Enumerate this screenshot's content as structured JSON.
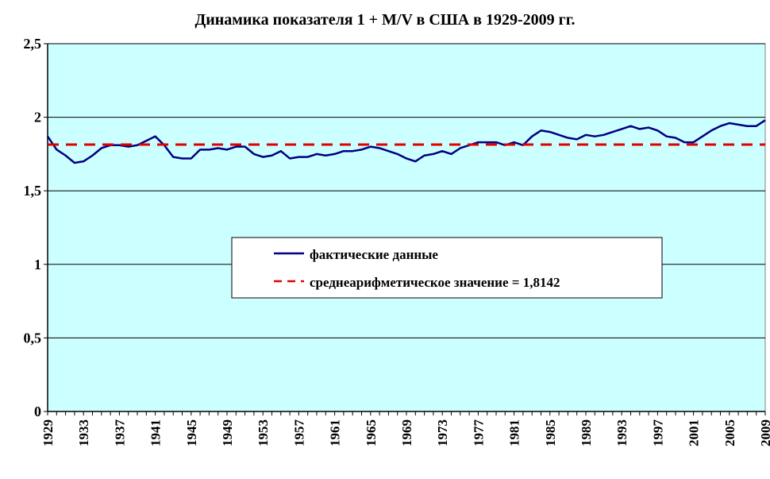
{
  "chart_data": {
    "type": "line",
    "title": "Динамика показателя 1 + M/V  в США в 1929-2009 гг.",
    "xlabel": "",
    "ylabel": "",
    "ylim": [
      0,
      2.5
    ],
    "xlim": [
      1929,
      2009
    ],
    "grid": true,
    "legend_position": "center",
    "y_ticks": [
      "0",
      "0,5",
      "1",
      "1,5",
      "2",
      "2,5"
    ],
    "x_ticks": [
      "1929",
      "1933",
      "1937",
      "1941",
      "1945",
      "1949",
      "1953",
      "1957",
      "1961",
      "1965",
      "1969",
      "1973",
      "1977",
      "1981",
      "1985",
      "1989",
      "1993",
      "1997",
      "2001",
      "2005",
      "2009"
    ],
    "colors": {
      "plot_background": "#ccffff",
      "actual_line": "#000080",
      "mean_line": "#e00000"
    },
    "series": [
      {
        "name": "фактические данные",
        "style": "solid",
        "x": [
          1929,
          1930,
          1931,
          1932,
          1933,
          1934,
          1935,
          1936,
          1937,
          1938,
          1939,
          1940,
          1941,
          1942,
          1943,
          1944,
          1945,
          1946,
          1947,
          1948,
          1949,
          1950,
          1951,
          1952,
          1953,
          1954,
          1955,
          1956,
          1957,
          1958,
          1959,
          1960,
          1961,
          1962,
          1963,
          1964,
          1965,
          1966,
          1967,
          1968,
          1969,
          1970,
          1971,
          1972,
          1973,
          1974,
          1975,
          1976,
          1977,
          1978,
          1979,
          1980,
          1981,
          1982,
          1983,
          1984,
          1985,
          1986,
          1987,
          1988,
          1989,
          1990,
          1991,
          1992,
          1993,
          1994,
          1995,
          1996,
          1997,
          1998,
          1999,
          2000,
          2001,
          2002,
          2003,
          2004,
          2005,
          2006,
          2007,
          2008,
          2009
        ],
        "values": [
          1.87,
          1.78,
          1.74,
          1.69,
          1.7,
          1.74,
          1.79,
          1.81,
          1.81,
          1.8,
          1.81,
          1.84,
          1.87,
          1.81,
          1.73,
          1.72,
          1.72,
          1.78,
          1.78,
          1.79,
          1.78,
          1.8,
          1.8,
          1.75,
          1.73,
          1.74,
          1.77,
          1.72,
          1.73,
          1.73,
          1.75,
          1.74,
          1.75,
          1.77,
          1.77,
          1.78,
          1.8,
          1.79,
          1.77,
          1.75,
          1.72,
          1.7,
          1.74,
          1.75,
          1.77,
          1.75,
          1.79,
          1.81,
          1.83,
          1.83,
          1.83,
          1.81,
          1.83,
          1.81,
          1.87,
          1.91,
          1.9,
          1.88,
          1.86,
          1.85,
          1.88,
          1.87,
          1.88,
          1.9,
          1.92,
          1.94,
          1.92,
          1.93,
          1.91,
          1.87,
          1.86,
          1.83,
          1.83,
          1.87,
          1.91,
          1.94,
          1.96,
          1.95,
          1.94,
          1.94,
          1.98
        ]
      },
      {
        "name": "среднеарифметическое значение = 1,8142",
        "style": "dashed",
        "x": [
          1929,
          2009
        ],
        "values": [
          1.8142,
          1.8142
        ]
      }
    ]
  }
}
